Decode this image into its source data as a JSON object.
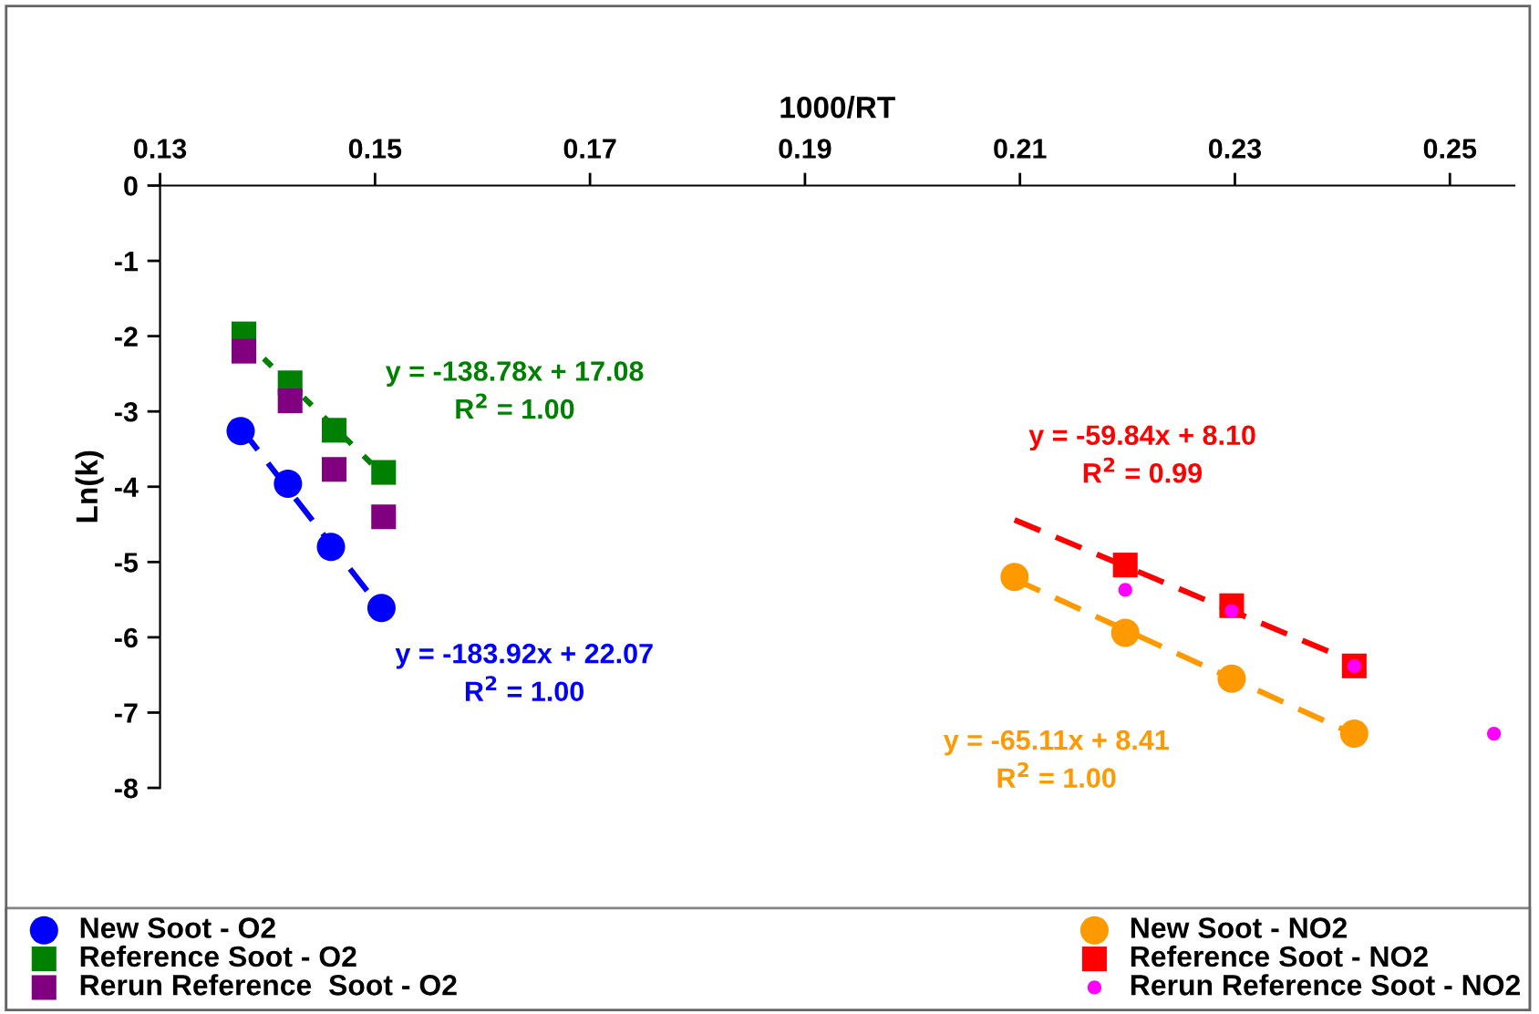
{
  "chart_data": {
    "type": "scatter",
    "xlabel": "1000/RT",
    "ylabel": "Ln(k)",
    "xlim": [
      0.13,
      0.256
    ],
    "xticks": [
      0.13,
      0.15,
      0.17,
      0.19,
      0.21,
      0.23,
      0.25
    ],
    "ylim": [
      -8,
      0
    ],
    "yticks": [
      0,
      -1,
      -2,
      -3,
      -4,
      -5,
      -6,
      -7,
      -8
    ],
    "grid": false,
    "legend": "bottom",
    "series": [
      {
        "name": "New Soot - O2",
        "color": "#0000ff",
        "marker": "circle",
        "x": [
          0.1375,
          0.1419,
          0.1459,
          0.1506
        ],
        "values": [
          -3.26,
          -3.96,
          -4.8,
          -5.61
        ]
      },
      {
        "name": "Reference Soot - O2",
        "color": "#008000",
        "marker": "square",
        "x": [
          0.1378,
          0.1421,
          0.1462,
          0.1508
        ],
        "values": [
          -1.97,
          -2.62,
          -3.25,
          -3.81
        ]
      },
      {
        "name": "Rerun Reference  Soot - O2",
        "color": "#800080",
        "marker": "square",
        "x": [
          0.1378,
          0.1421,
          0.1462,
          0.1508
        ],
        "values": [
          -2.2,
          -2.86,
          -3.77,
          -4.4
        ]
      },
      {
        "name": "New Soot - NO2",
        "color": "#ff9900",
        "marker": "circle",
        "x": [
          0.2095,
          0.2198,
          0.2297,
          0.2411
        ],
        "values": [
          -5.2,
          -5.94,
          -6.55,
          -7.28
        ]
      },
      {
        "name": "Reference Soot - NO2",
        "color": "#ff0000",
        "marker": "square",
        "x": [
          0.2198,
          0.2297,
          0.2411
        ],
        "values": [
          -5.04,
          -5.58,
          -6.38
        ]
      },
      {
        "name": "Rerun Reference Soot - NO2",
        "color": "#ff00ff",
        "marker": "circle",
        "x": [
          0.2198,
          0.2297,
          0.2411,
          0.2541
        ],
        "values": [
          -5.37,
          -5.65,
          -6.38,
          -7.28
        ]
      },
      {
        "type": "line",
        "color": "#008000",
        "line_style": "dotted",
        "x": [
          0.1378,
          0.1508
        ],
        "values": [
          -2.04,
          -3.85
        ]
      },
      {
        "type": "line",
        "color": "#0000ff",
        "line_style": "dashed",
        "x": [
          0.1375,
          0.1506
        ],
        "values": [
          -3.22,
          -5.63
        ]
      },
      {
        "type": "line",
        "color": "#ff0000",
        "line_style": "dashed",
        "x": [
          0.2095,
          0.2411
        ],
        "values": [
          -4.44,
          -6.33
        ]
      },
      {
        "type": "line",
        "color": "#ff9900",
        "line_style": "dashed",
        "x": [
          0.2095,
          0.2411
        ],
        "values": [
          -5.23,
          -7.29
        ]
      }
    ],
    "annotations": [
      "y = -138.78x + 17.08\nR$^{2}$ = 1.00",
      "y = -183.92x + 22.07\nR$^{2}$ = 1.00",
      "y = -59.84x + 8.10\nR$^{2}$ = 0.99",
      "y = -65.11x + 8.41\nR$^{2}$ = 1.00"
    ]
  }
}
